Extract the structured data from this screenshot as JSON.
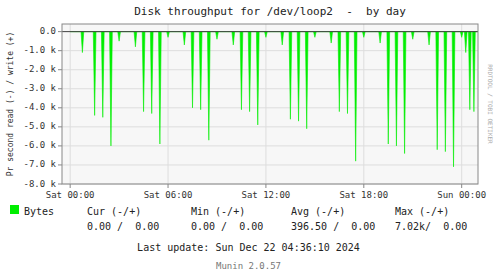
{
  "chart_data": {
    "type": "area",
    "title": "Disk throughput for /dev/loop2  -  by day",
    "ylabel": "Pr second read (-) / write (+)",
    "x": [
      0,
      300,
      600,
      900,
      1200,
      1500,
      1800,
      2100,
      2400,
      2700,
      3000,
      3300,
      3600,
      3900,
      4200,
      4500,
      4800,
      5100,
      5400,
      5700,
      6000,
      6300,
      6600,
      6900,
      7200,
      7500,
      7800,
      8100,
      8400,
      8700,
      9000,
      9300,
      9600,
      9900,
      10200,
      10500,
      10800,
      11100,
      11400,
      11700,
      12000,
      12300,
      12600,
      12900,
      13200,
      13500,
      13800,
      14100,
      14400,
      14700,
      15000,
      15300,
      15600,
      15900,
      16200,
      16500,
      16800,
      17100,
      17400,
      17700,
      18000,
      18300,
      18600,
      18900,
      19200,
      19500,
      19800,
      20100,
      20400,
      20700,
      21000,
      21300,
      21600,
      21900,
      22200,
      22500,
      22800,
      23100,
      23400,
      23700,
      24000,
      24300,
      24600,
      24900,
      25200,
      25500,
      25800,
      26100,
      26400,
      26700,
      27000,
      27300,
      27600,
      27900,
      28200,
      28500,
      28800,
      29100,
      29400,
      29700,
      30000,
      30300,
      30600,
      30900,
      31200,
      31500,
      31800,
      32100,
      32400,
      32700,
      33000,
      33300,
      33600,
      33900,
      34200,
      34500,
      34800,
      35100,
      35400,
      35700,
      36000,
      36300,
      36600,
      36900,
      37200,
      37500,
      37800,
      38100,
      38400,
      38700,
      39000,
      39300,
      39600,
      39900,
      40200,
      40500,
      40800,
      41100,
      41400,
      41700,
      42000,
      42300,
      42600,
      42900,
      43200,
      43500,
      43800,
      44100,
      44400,
      44700,
      45000,
      45300,
      45600,
      45900,
      46200,
      46500,
      46800,
      47100,
      47400,
      47700,
      48000,
      48300,
      48600,
      48900,
      49200,
      49500,
      49800,
      50100,
      50400,
      50700,
      51000,
      51300,
      51600,
      51900,
      52200,
      52500,
      52800,
      53100,
      53400,
      53700,
      54000,
      54300,
      54600,
      54900,
      55200,
      55500,
      55800,
      56100,
      56400,
      56700,
      57000,
      57300,
      57600,
      57900,
      58200,
      58500,
      58800,
      59100,
      59400,
      59700,
      60000,
      60300,
      60600,
      60900,
      61200,
      61500,
      61800,
      62100,
      62400,
      62700,
      63000,
      63300,
      63600,
      63900,
      64200,
      64500,
      64800,
      65100,
      65400,
      65700,
      66000,
      66300,
      66600,
      66900,
      67200,
      67500,
      67800,
      68100,
      68400,
      68700,
      69000,
      69300,
      69600,
      69900,
      70200,
      70500,
      70800,
      71100,
      71400,
      71700,
      72000,
      72300,
      72600,
      72900,
      73200,
      73500,
      73800,
      74100,
      74400,
      74700,
      75000,
      75300,
      75600,
      75900,
      76200,
      76500,
      76800,
      77100,
      77400,
      77700,
      78000,
      78300,
      78600,
      78900,
      79200,
      79500,
      79800,
      80100,
      80400,
      80700,
      81000,
      81300,
      81600,
      81900,
      82200,
      82500,
      82800,
      83100,
      83400,
      83700,
      84000,
      84300,
      84600,
      84900,
      85200,
      85500,
      85800,
      86100,
      86400,
      86700,
      87000,
      87300,
      87600,
      87900,
      88200,
      88500,
      88800,
      89100,
      89400,
      89700,
      90000
    ],
    "series": [
      {
        "name": "Bytes",
        "color": "#00ee00",
        "values": [
          0,
          0,
          0,
          0,
          0,
          0,
          0,
          0,
          0,
          -1100,
          0,
          0,
          0,
          0,
          0,
          0,
          0,
          0,
          -4400,
          0,
          0,
          0,
          0,
          0,
          -4500,
          0,
          0,
          0,
          0,
          0,
          -6000,
          0,
          0,
          0,
          0,
          0,
          -500,
          0,
          0,
          0,
          0,
          0,
          0,
          0,
          0,
          0,
          0,
          0,
          -800,
          0,
          0,
          0,
          0,
          0,
          -4200,
          0,
          0,
          0,
          0,
          0,
          -4300,
          0,
          0,
          0,
          0,
          0,
          -5900,
          0,
          0,
          0,
          0,
          0,
          -300,
          0,
          0,
          0,
          0,
          0,
          0,
          0,
          0,
          0,
          0,
          0,
          -700,
          0,
          0,
          0,
          0,
          0,
          -4000,
          0,
          0,
          0,
          0,
          0,
          -4100,
          0,
          0,
          0,
          0,
          0,
          -5700,
          0,
          0,
          0,
          0,
          0,
          -400,
          0,
          0,
          0,
          0,
          0,
          0,
          0,
          0,
          0,
          0,
          0,
          -700,
          0,
          0,
          0,
          0,
          0,
          -4100,
          0,
          0,
          0,
          0,
          0,
          -4200,
          0,
          0,
          0,
          0,
          0,
          -4900,
          0,
          0,
          0,
          0,
          0,
          -300,
          0,
          0,
          0,
          0,
          0,
          0,
          0,
          0,
          0,
          0,
          0,
          -700,
          0,
          0,
          0,
          0,
          0,
          -4600,
          0,
          0,
          0,
          0,
          0,
          -4700,
          0,
          0,
          0,
          0,
          0,
          -5100,
          0,
          0,
          0,
          0,
          0,
          -300,
          0,
          0,
          0,
          0,
          0,
          0,
          0,
          0,
          0,
          0,
          0,
          -600,
          0,
          0,
          0,
          0,
          0,
          -4200,
          0,
          0,
          0,
          0,
          0,
          -4300,
          0,
          0,
          0,
          0,
          0,
          -6800,
          0,
          0,
          0,
          0,
          0,
          -300,
          0,
          0,
          0,
          0,
          0,
          0,
          0,
          0,
          0,
          0,
          0,
          -600,
          0,
          0,
          0,
          0,
          0,
          -5900,
          0,
          0,
          0,
          0,
          0,
          -6000,
          0,
          0,
          0,
          0,
          0,
          -6400,
          0,
          0,
          0,
          0,
          0,
          -400,
          0,
          0,
          0,
          0,
          0,
          0,
          0,
          0,
          0,
          0,
          0,
          -700,
          0,
          0,
          0,
          0,
          0,
          -6200,
          0,
          0,
          0,
          0,
          0,
          -6300,
          0,
          0,
          0,
          0,
          0,
          -7100,
          0,
          0,
          0,
          0,
          0,
          -300,
          0,
          0,
          -1100,
          0,
          0,
          -4100,
          0,
          0,
          -4200,
          0,
          0,
          0
        ]
      }
    ],
    "xlim": [
      -1800,
      90000
    ],
    "xticks": [
      {
        "value": 0,
        "label": "Sat 00:00"
      },
      {
        "value": 21600,
        "label": "Sat 06:00"
      },
      {
        "value": 43200,
        "label": "Sat 12:00"
      },
      {
        "value": 64800,
        "label": "Sat 18:00"
      },
      {
        "value": 86400,
        "label": "Sun 00:00"
      }
    ],
    "ylim": [
      -8000,
      400
    ],
    "yticks": [
      {
        "value": 0,
        "label": "0.0"
      },
      {
        "value": -1000,
        "label": "-1.0 k"
      },
      {
        "value": -2000,
        "label": "-2.0 k"
      },
      {
        "value": -3000,
        "label": "-3.0 k"
      },
      {
        "value": -4000,
        "label": "-4.0 k"
      },
      {
        "value": -5000,
        "label": "-5.0 k"
      },
      {
        "value": -6000,
        "label": "-6.0 k"
      },
      {
        "value": -7000,
        "label": "-7.0 k"
      },
      {
        "value": -8000,
        "label": "-8.0 k"
      }
    ],
    "grid": true,
    "legend": "bottom",
    "annotations": [
      "Cur (-/+)",
      "Min (-/+)",
      "Avg (-/+)",
      "Max (-/+)",
      "0.00 /  0.00",
      "0.00 /  0.00",
      "396.50 /  0.00",
      "7.02k/  0.00",
      "Last update: Sun Dec 22 04:36:10 2024",
      "Munin 2.0.57",
      "RRDTOOL / TOBI OETIKER"
    ]
  }
}
